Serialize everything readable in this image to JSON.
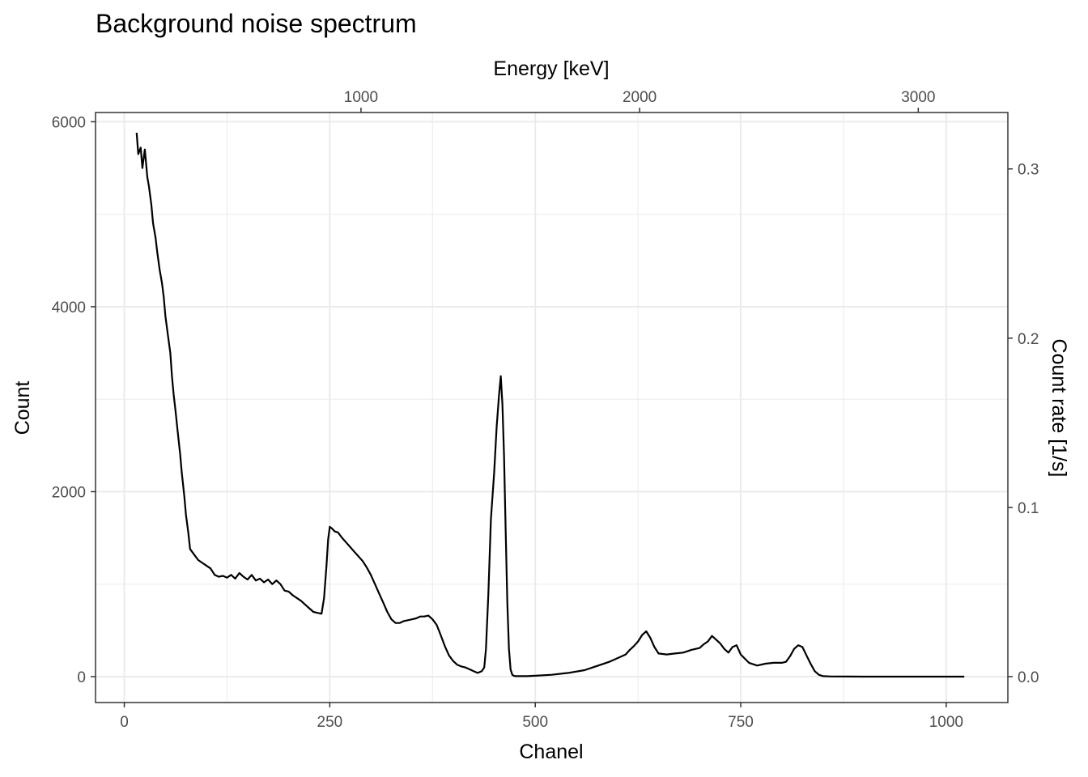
{
  "chart_data": {
    "type": "line",
    "title": "Background noise spectrum",
    "xlabel": "Chanel",
    "ylabel": "Count",
    "secondary_xlabel": "Energy [keV]",
    "secondary_ylabel": "Count rate [1/s]",
    "xlim": [
      -35,
      1075
    ],
    "ylim": [
      -280,
      6100
    ],
    "grid": true,
    "x_ticks": [
      0,
      250,
      500,
      750,
      1000
    ],
    "x_tick_labels": [
      "0",
      "250",
      "500",
      "750",
      "1000"
    ],
    "y_ticks": [
      0,
      2000,
      4000,
      6000
    ],
    "y_tick_labels": [
      "0",
      "2000",
      "4000",
      "6000"
    ],
    "top_ticks_channel": [
      288,
      627,
      966
    ],
    "top_tick_labels": [
      "1000",
      "2000",
      "3000"
    ],
    "right_ticks_count": [
      0,
      1830,
      3660,
      5490
    ],
    "right_tick_labels": [
      "0.0",
      "0.1",
      "0.2",
      "0.3"
    ],
    "line_color": "#000000",
    "series": [
      {
        "x": [
          15,
          17,
          20,
          22,
          25,
          28,
          30,
          33,
          35,
          38,
          40,
          43,
          46,
          48,
          50,
          53,
          56,
          58,
          60,
          62,
          65,
          68,
          70,
          73,
          75,
          78,
          80,
          85,
          90,
          95,
          100,
          105,
          110,
          115,
          120,
          125,
          130,
          135,
          140,
          145,
          150,
          155,
          160,
          165,
          170,
          175,
          180,
          185,
          190,
          195,
          200,
          205,
          210,
          215,
          220,
          225,
          230,
          235,
          240,
          243,
          246,
          248,
          250,
          253,
          256,
          260,
          265,
          270,
          275,
          280,
          285,
          290,
          295,
          300,
          305,
          310,
          315,
          320,
          325,
          330,
          335,
          340,
          345,
          350,
          355,
          360,
          365,
          370,
          375,
          380,
          385,
          390,
          395,
          400,
          405,
          410,
          415,
          420,
          425,
          430,
          435,
          438,
          440,
          443,
          446,
          450,
          453,
          456,
          458,
          460,
          462,
          464,
          466,
          468,
          470,
          472,
          474,
          476,
          480,
          490,
          500,
          520,
          540,
          560,
          570,
          580,
          590,
          600,
          610,
          615,
          620,
          625,
          630,
          635,
          640,
          645,
          650,
          660,
          670,
          680,
          690,
          700,
          705,
          710,
          715,
          720,
          725,
          730,
          735,
          740,
          745,
          750,
          760,
          770,
          780,
          790,
          800,
          805,
          810,
          815,
          820,
          825,
          830,
          835,
          840,
          845,
          850,
          860,
          880,
          900,
          950,
          1000,
          1022
        ],
        "values": [
          5880,
          5650,
          5720,
          5500,
          5700,
          5400,
          5300,
          5100,
          4900,
          4750,
          4600,
          4400,
          4250,
          4100,
          3900,
          3700,
          3500,
          3250,
          3050,
          2900,
          2650,
          2400,
          2200,
          1950,
          1750,
          1550,
          1380,
          1320,
          1260,
          1230,
          1200,
          1170,
          1100,
          1080,
          1090,
          1070,
          1100,
          1060,
          1120,
          1080,
          1050,
          1100,
          1040,
          1060,
          1020,
          1050,
          1000,
          1040,
          1000,
          930,
          920,
          880,
          850,
          820,
          780,
          740,
          700,
          690,
          680,
          850,
          1200,
          1480,
          1620,
          1600,
          1570,
          1560,
          1500,
          1450,
          1400,
          1350,
          1300,
          1250,
          1180,
          1100,
          1000,
          900,
          800,
          700,
          620,
          580,
          580,
          600,
          610,
          620,
          630,
          650,
          650,
          660,
          620,
          560,
          450,
          330,
          230,
          170,
          130,
          110,
          100,
          80,
          60,
          40,
          60,
          100,
          300,
          900,
          1700,
          2200,
          2700,
          3050,
          3250,
          2950,
          2400,
          1600,
          800,
          300,
          80,
          20,
          10,
          5,
          5,
          5,
          10,
          20,
          40,
          70,
          100,
          130,
          160,
          200,
          240,
          290,
          330,
          380,
          450,
          490,
          420,
          320,
          250,
          240,
          250,
          260,
          290,
          310,
          350,
          380,
          440,
          400,
          360,
          300,
          260,
          320,
          340,
          240,
          150,
          120,
          140,
          150,
          150,
          160,
          220,
          300,
          340,
          320,
          230,
          140,
          60,
          20,
          5,
          2,
          1,
          0,
          0,
          0,
          0
        ]
      }
    ]
  }
}
